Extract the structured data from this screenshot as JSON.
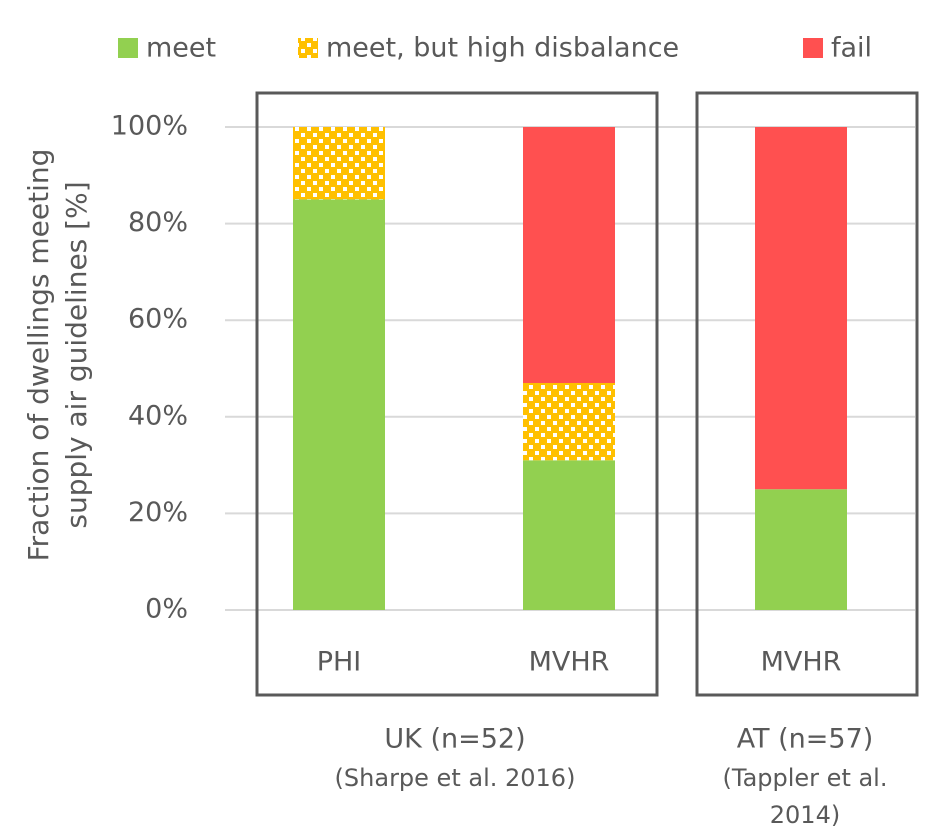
{
  "chart_data": {
    "type": "stacked-bar",
    "categories": [
      "PHI",
      "MVHR",
      "MVHR"
    ],
    "series": [
      {
        "name": "meet",
        "color": "#92d050",
        "values": [
          85,
          31,
          25
        ]
      },
      {
        "name": "meet, but high disbalance",
        "color": "#ffc000",
        "pattern": "checker",
        "values": [
          15,
          16,
          0
        ]
      },
      {
        "name": "fail",
        "color": "#ff5050",
        "values": [
          0,
          53,
          75
        ]
      }
    ],
    "ylabel": [
      "Fraction of dwellings meeting",
      "supply air guidelines [%]"
    ],
    "ylim": [
      0,
      100
    ],
    "yticks": [
      {
        "value": 0,
        "label": "0%"
      },
      {
        "value": 20,
        "label": "20%"
      },
      {
        "value": 40,
        "label": "40%"
      },
      {
        "value": 60,
        "label": "60%"
      },
      {
        "value": 80,
        "label": "80%"
      },
      {
        "value": 100,
        "label": "100%"
      }
    ],
    "grid": true,
    "legend": "top",
    "groups": [
      {
        "label": "UK (n=52)",
        "sublabel": [
          "(Sharpe et al.  2016)"
        ]
      },
      {
        "label": "AT (n=57)",
        "sublabel": [
          "(Tappler et al.",
          "2014)"
        ]
      }
    ]
  }
}
